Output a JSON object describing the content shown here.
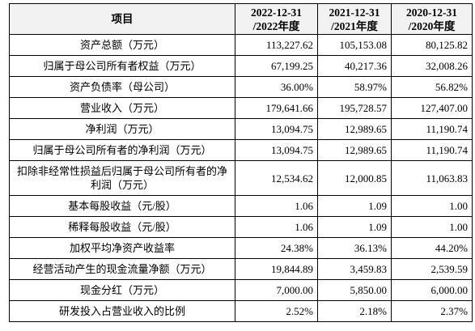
{
  "table": {
    "header": [
      {
        "line1": "项目"
      },
      {
        "line1": "2022-12-31",
        "line2": "/2022年度"
      },
      {
        "line1": "2021-12-31",
        "line2": "/2021年度"
      },
      {
        "line1": "2020-12-31",
        "line2": "/2020年度"
      }
    ],
    "rows": [
      [
        "资产总额（万元）",
        "113,227.62",
        "105,153.08",
        "80,125.82"
      ],
      [
        "归属于母公司所有者权益（万元）",
        "67,199.25",
        "40,217.36",
        "32,008.26"
      ],
      [
        "资产负债率（母公司）",
        "36.00%",
        "58.97%",
        "56.82%"
      ],
      [
        "营业收入（万元）",
        "179,641.66",
        "195,728.57",
        "127,407.00"
      ],
      [
        "净利润（万元）",
        "13,094.75",
        "12,989.65",
        "11,190.74"
      ],
      [
        "归属于母公司所有者的净利润（万元）",
        "13,094.75",
        "12,989.65",
        "11,190.74"
      ],
      [
        "扣除非经常性损益后归属于母公司所有者的净利润（万元）",
        "12,534.62",
        "12,000.85",
        "11,063.83"
      ],
      [
        "基本每股收益（元/股）",
        "1.06",
        "1.09",
        "1.00"
      ],
      [
        "稀释每股收益（元/股）",
        "1.06",
        "1.09",
        "1.00"
      ],
      [
        "加权平均净资产收益率",
        "24.38%",
        "36.13%",
        "44.20%"
      ],
      [
        "经营活动产生的现金流量净额（万元）",
        "19,844.89",
        "3,459.83",
        "2,539.59"
      ],
      [
        "现金分红（万元）",
        "7,000.00",
        "5,850.00",
        "6,000.00"
      ],
      [
        "研发投入占营业收入的比例",
        "2.52%",
        "2.18%",
        "2.37%"
      ]
    ]
  }
}
